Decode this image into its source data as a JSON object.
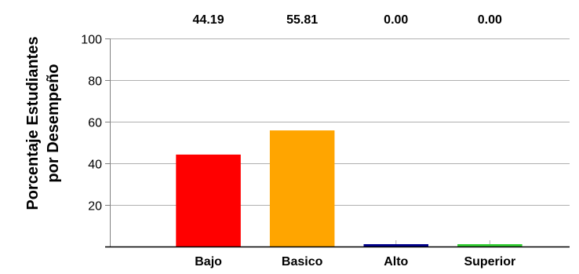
{
  "chart_data": {
    "type": "bar",
    "categories": [
      "Bajo",
      "Basico",
      "Alto",
      "Superior"
    ],
    "values": [
      44.19,
      55.81,
      0.0,
      0.0
    ],
    "value_labels": [
      "44.19",
      "55.81",
      "0.00",
      "0.00"
    ],
    "colors": [
      "#ff0000",
      "#ffa500",
      "#00008b",
      "#32cd32"
    ],
    "title": "",
    "xlabel": "",
    "ylabel_lines": [
      "Porcentaje Estudiantes",
      "por Desempeño"
    ],
    "ylim": [
      0,
      100
    ],
    "yticks": [
      20,
      40,
      60,
      80,
      100
    ],
    "grid": true,
    "grid_color": "#b0b0b0",
    "axis_color": "#808080",
    "legend": "none"
  }
}
